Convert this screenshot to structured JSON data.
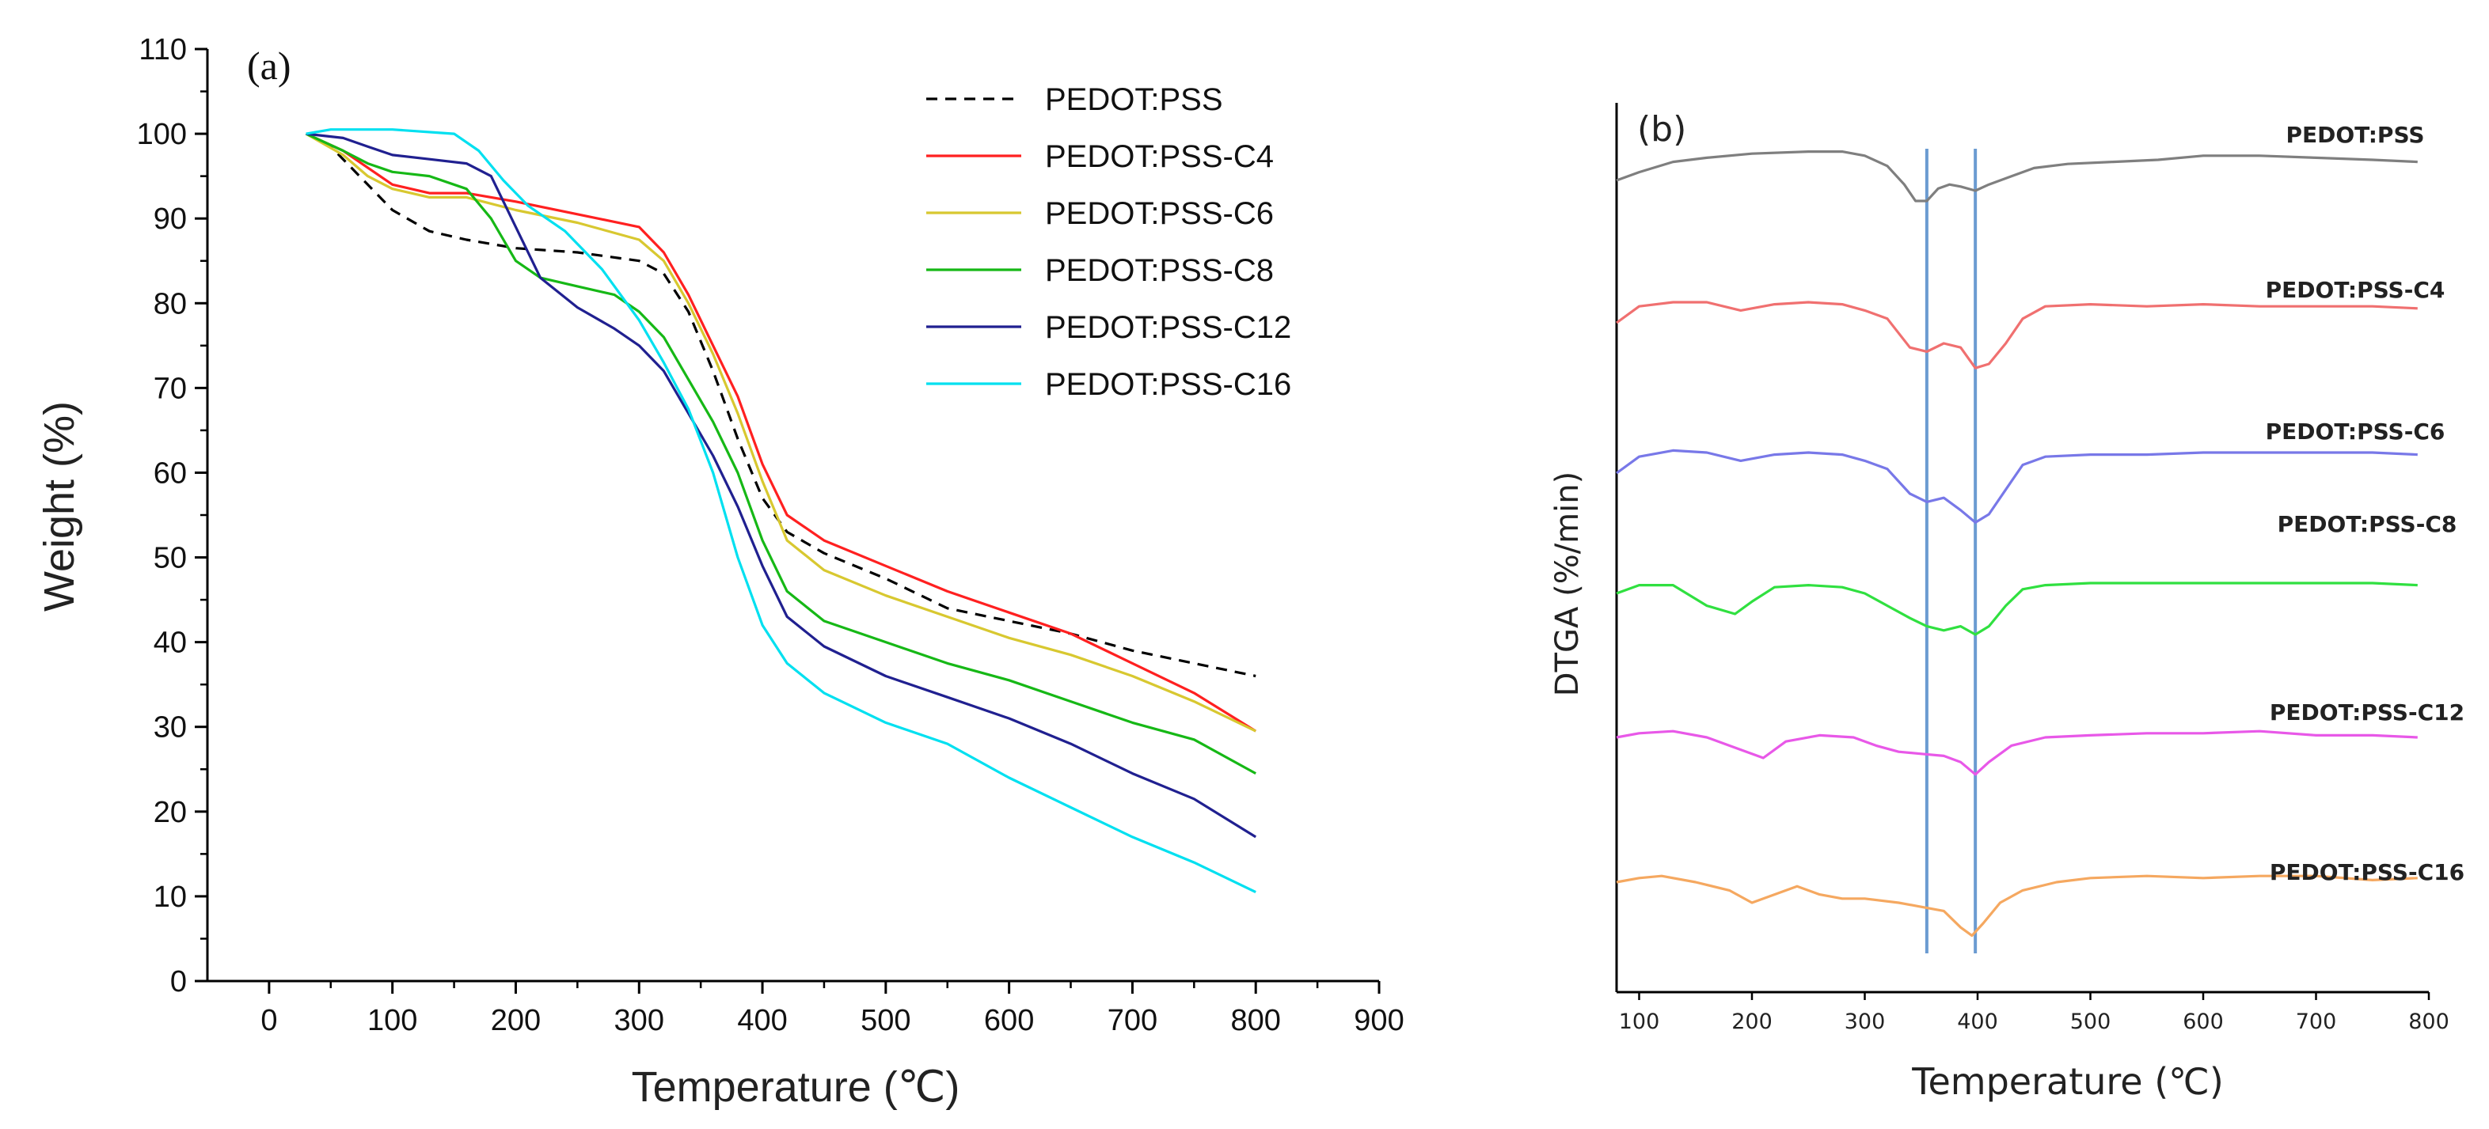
{
  "chart_data": [
    {
      "type": "line",
      "panel_label": "(a)",
      "xlabel": "Temperature (℃)",
      "ylabel": "Weight (%)",
      "xlim": [
        -50,
        900
      ],
      "ylim": [
        0,
        110
      ],
      "xticks": [
        0,
        100,
        200,
        300,
        400,
        500,
        600,
        700,
        800,
        900
      ],
      "yticks": [
        0,
        10,
        20,
        30,
        40,
        50,
        60,
        70,
        80,
        90,
        100,
        110
      ],
      "legend_position": "top-right",
      "series": [
        {
          "name": "PEDOT:PSS",
          "color": "#000000",
          "dashed": true,
          "x": [
            30,
            50,
            80,
            100,
            130,
            160,
            200,
            250,
            300,
            320,
            340,
            360,
            380,
            400,
            420,
            450,
            500,
            550,
            600,
            650,
            700,
            750,
            800
          ],
          "y": [
            100,
            98.5,
            94,
            91,
            88.5,
            87.5,
            86.5,
            86,
            85,
            83.5,
            79,
            72,
            64,
            57,
            53,
            50.5,
            47.5,
            44,
            42.5,
            41,
            39,
            37.5,
            36
          ]
        },
        {
          "name": "PEDOT:PSS-C4",
          "color": "#ff2020",
          "dashed": false,
          "x": [
            30,
            60,
            80,
            100,
            130,
            160,
            200,
            250,
            300,
            320,
            340,
            360,
            380,
            400,
            420,
            450,
            500,
            550,
            600,
            650,
            700,
            750,
            800
          ],
          "y": [
            100,
            98,
            96,
            94,
            93,
            93,
            92,
            90.5,
            89,
            86,
            81,
            75,
            69,
            61,
            55,
            52,
            49,
            46,
            43.5,
            41,
            37.5,
            34,
            29.5
          ]
        },
        {
          "name": "PEDOT:PSS-C6",
          "color": "#d8c830",
          "dashed": false,
          "x": [
            30,
            60,
            80,
            100,
            130,
            160,
            200,
            250,
            300,
            320,
            340,
            360,
            380,
            400,
            420,
            450,
            500,
            550,
            600,
            650,
            700,
            750,
            800
          ],
          "y": [
            100,
            97.5,
            95,
            93.5,
            92.5,
            92.5,
            91,
            89.5,
            87.5,
            85,
            80,
            74,
            67,
            59,
            52,
            48.5,
            45.5,
            43,
            40.5,
            38.5,
            36,
            33,
            29.5
          ]
        },
        {
          "name": "PEDOT:PSS-C8",
          "color": "#16b816",
          "dashed": false,
          "x": [
            30,
            60,
            80,
            100,
            130,
            160,
            180,
            200,
            220,
            250,
            280,
            300,
            320,
            340,
            360,
            380,
            400,
            420,
            450,
            500,
            550,
            600,
            650,
            700,
            750,
            800
          ],
          "y": [
            100,
            98,
            96.5,
            95.5,
            95,
            93.5,
            90,
            85,
            83,
            82,
            81,
            79,
            76,
            71,
            66,
            60,
            52,
            46,
            42.5,
            40,
            37.5,
            35.5,
            33,
            30.5,
            28.5,
            24.5
          ]
        },
        {
          "name": "PEDOT:PSS-C12",
          "color": "#202090",
          "dashed": false,
          "x": [
            30,
            60,
            80,
            100,
            130,
            160,
            180,
            200,
            220,
            250,
            280,
            300,
            320,
            340,
            360,
            380,
            400,
            420,
            450,
            500,
            550,
            600,
            650,
            700,
            750,
            800
          ],
          "y": [
            100,
            99.5,
            98.5,
            97.5,
            97,
            96.5,
            95,
            89,
            83,
            79.5,
            77,
            75,
            72,
            67,
            62,
            56,
            49,
            43,
            39.5,
            36,
            33.5,
            31,
            28,
            24.5,
            21.5,
            17
          ]
        },
        {
          "name": "PEDOT:PSS-C16",
          "color": "#00e0f0",
          "dashed": false,
          "x": [
            30,
            50,
            100,
            150,
            170,
            190,
            210,
            240,
            270,
            300,
            320,
            340,
            360,
            380,
            400,
            420,
            450,
            500,
            550,
            600,
            650,
            700,
            750,
            800
          ],
          "y": [
            100,
            100.5,
            100.5,
            100,
            98,
            94.5,
            91.5,
            88.5,
            84,
            78,
            73,
            67.5,
            60,
            50,
            42,
            37.5,
            34,
            30.5,
            28,
            24,
            20.5,
            17,
            14,
            10.5
          ]
        }
      ]
    },
    {
      "type": "line",
      "panel_label": "(b)",
      "xlabel": "Temperature (℃)",
      "ylabel": "DTGA (%/min)",
      "xlim": [
        80,
        800
      ],
      "xticks": [
        100,
        200,
        300,
        400,
        500,
        600,
        700,
        800
      ],
      "vlines": [
        {
          "x": 355,
          "color": "#6b9bd1"
        },
        {
          "x": 398,
          "color": "#6b9bd1"
        }
      ],
      "y_units_note": "stacked traces, arbitrary offsets",
      "series": [
        {
          "name": "PEDOT:PSS",
          "color": "#7f7f7f",
          "x": [
            80,
            100,
            130,
            160,
            200,
            250,
            280,
            300,
            320,
            335,
            345,
            355,
            365,
            375,
            385,
            398,
            410,
            430,
            450,
            480,
            520,
            560,
            600,
            650,
            700,
            750,
            790
          ],
          "y": [
            0,
            4,
            9,
            11,
            13,
            14,
            14,
            12,
            7,
            -2,
            -10,
            -10,
            -4,
            -2,
            -3,
            -5,
            -2,
            2,
            6,
            8,
            9,
            10,
            12,
            12,
            11,
            10,
            9
          ]
        },
        {
          "name": "PEDOT:PSS-C4",
          "color": "#f07070",
          "x": [
            80,
            100,
            130,
            160,
            190,
            220,
            250,
            280,
            300,
            320,
            340,
            355,
            370,
            385,
            398,
            410,
            425,
            440,
            460,
            500,
            550,
            600,
            650,
            700,
            750,
            790
          ],
          "y": [
            0,
            8,
            10,
            10,
            6,
            9,
            10,
            9,
            6,
            2,
            -12,
            -14,
            -10,
            -12,
            -22,
            -20,
            -10,
            2,
            8,
            9,
            8,
            9,
            8,
            8,
            8,
            7
          ]
        },
        {
          "name": "PEDOT:PSS-C6",
          "color": "#7878e8",
          "x": [
            80,
            100,
            130,
            160,
            190,
            220,
            250,
            280,
            300,
            320,
            340,
            355,
            370,
            385,
            398,
            410,
            425,
            440,
            460,
            500,
            550,
            600,
            650,
            700,
            750,
            790
          ],
          "y": [
            0,
            8,
            11,
            10,
            6,
            9,
            10,
            9,
            6,
            2,
            -10,
            -14,
            -12,
            -18,
            -24,
            -20,
            -8,
            4,
            8,
            9,
            9,
            10,
            10,
            10,
            10,
            9
          ]
        },
        {
          "name": "PEDOT:PSS-C8",
          "color": "#30e040",
          "x": [
            80,
            100,
            130,
            160,
            185,
            200,
            220,
            250,
            280,
            300,
            320,
            340,
            355,
            370,
            385,
            398,
            410,
            425,
            440,
            460,
            500,
            550,
            600,
            650,
            700,
            750,
            790
          ],
          "y": [
            0,
            4,
            4,
            -6,
            -10,
            -4,
            3,
            4,
            3,
            0,
            -6,
            -12,
            -16,
            -18,
            -16,
            -20,
            -16,
            -6,
            2,
            4,
            5,
            5,
            5,
            5,
            5,
            5,
            4
          ]
        },
        {
          "name": "PEDOT:PSS-C12",
          "color": "#e858e8",
          "x": [
            80,
            100,
            130,
            160,
            190,
            210,
            230,
            260,
            290,
            310,
            330,
            350,
            370,
            385,
            398,
            410,
            430,
            460,
            500,
            550,
            600,
            650,
            700,
            750,
            790
          ],
          "y": [
            0,
            2,
            3,
            0,
            -6,
            -10,
            -2,
            1,
            0,
            -4,
            -7,
            -8,
            -9,
            -12,
            -18,
            -12,
            -4,
            0,
            1,
            2,
            2,
            3,
            1,
            1,
            0
          ]
        },
        {
          "name": "PEDOT:PSS-C16",
          "color": "#f5a860",
          "x": [
            80,
            100,
            120,
            150,
            180,
            200,
            220,
            240,
            260,
            280,
            300,
            330,
            350,
            370,
            385,
            395,
            405,
            420,
            440,
            470,
            500,
            550,
            600,
            650,
            700,
            750,
            790
          ],
          "y": [
            0,
            2,
            3,
            0,
            -4,
            -10,
            -6,
            -2,
            -6,
            -8,
            -8,
            -10,
            -12,
            -14,
            -22,
            -26,
            -20,
            -10,
            -4,
            0,
            2,
            3,
            2,
            3,
            3,
            1,
            2
          ]
        }
      ]
    }
  ]
}
